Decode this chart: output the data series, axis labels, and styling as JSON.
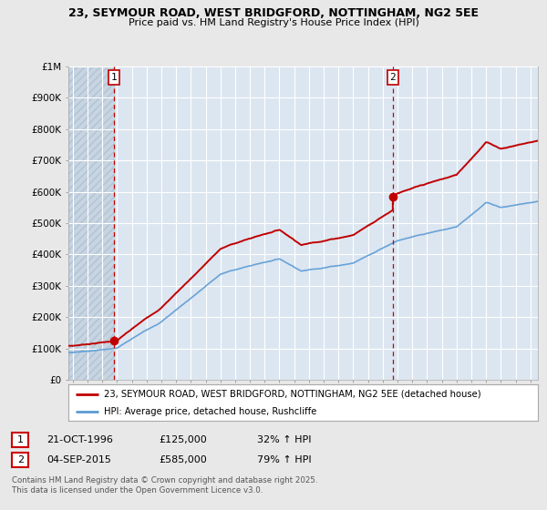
{
  "title_line1": "23, SEYMOUR ROAD, WEST BRIDGFORD, NOTTINGHAM, NG2 5EE",
  "title_line2": "Price paid vs. HM Land Registry's House Price Index (HPI)",
  "ylim": [
    0,
    1000000
  ],
  "xlim": [
    1993.7,
    2025.5
  ],
  "yticks": [
    0,
    100000,
    200000,
    300000,
    400000,
    500000,
    600000,
    700000,
    800000,
    900000,
    1000000
  ],
  "ytick_labels": [
    "£0",
    "£100K",
    "£200K",
    "£300K",
    "£400K",
    "£500K",
    "£600K",
    "£700K",
    "£800K",
    "£900K",
    "£1M"
  ],
  "hpi_color": "#5b9bd5",
  "price_color": "#c00000",
  "vline_color": "#c00000",
  "bg_color": "#e8e8e8",
  "plot_bg_color": "#dce6f1",
  "grid_color": "#ffffff",
  "hatch_color": "#c8d4e0",
  "transaction1_date": 1996.81,
  "transaction1_price": 125000,
  "transaction2_date": 2015.68,
  "transaction2_price": 585000,
  "legend_line1": "23, SEYMOUR ROAD, WEST BRIDGFORD, NOTTINGHAM, NG2 5EE (detached house)",
  "legend_line2": "HPI: Average price, detached house, Rushcliffe",
  "footer1": "Contains HM Land Registry data © Crown copyright and database right 2025.",
  "footer2": "This data is licensed under the Open Government Licence v3.0.",
  "table_row1": [
    "1",
    "21-OCT-1996",
    "£125,000",
    "32% ↑ HPI"
  ],
  "table_row2": [
    "2",
    "04-SEP-2015",
    "£585,000",
    "79% ↑ HPI"
  ]
}
